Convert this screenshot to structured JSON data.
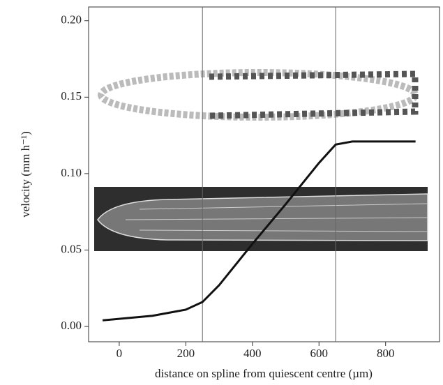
{
  "chart_data": {
    "type": "line",
    "xlabel": "distance on spline from quiescent centre (µm)",
    "ylabel": "velocity (mm h⁻¹)",
    "x": [
      -50,
      0,
      100,
      200,
      250,
      300,
      400,
      500,
      600,
      650,
      700,
      800,
      890
    ],
    "series": [
      {
        "color": "#111111",
        "values": [
          0.004,
          0.005,
          0.007,
          0.011,
          0.016,
          0.027,
          0.054,
          0.08,
          0.107,
          0.119,
          0.121,
          0.121,
          0.121
        ]
      }
    ],
    "vlines": [
      250,
      650
    ],
    "xlim": [
      -92,
      962
    ],
    "ylim": [
      -0.01,
      0.209
    ],
    "xticks": [
      0,
      200,
      400,
      600,
      800
    ],
    "yticks": [
      {
        "value": 0,
        "label": "0.00"
      },
      {
        "value": 0.05,
        "label": "0.05"
      },
      {
        "value": 0.1,
        "label": "0.10"
      },
      {
        "value": 0.15,
        "label": "0.15"
      },
      {
        "value": 0.2,
        "label": "0.20"
      }
    ]
  }
}
